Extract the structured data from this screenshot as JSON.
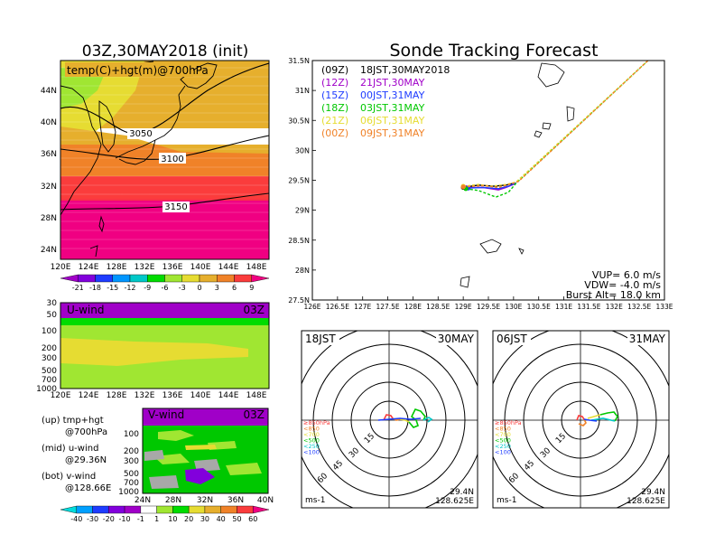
{
  "header": {
    "left_title": "03Z,30MAY2018 (init)",
    "right_title": "Sonde Tracking Forecast"
  },
  "map_panel": {
    "label": "temp(C)+hgt(m)@700hPa",
    "lat_labels": [
      "44N",
      "40N",
      "36N",
      "32N",
      "28N",
      "24N"
    ],
    "lon_labels": [
      "120E",
      "124E",
      "128E",
      "132E",
      "136E",
      "140E",
      "144E",
      "148E"
    ],
    "contours": [
      "3050",
      "3100",
      "3150"
    ],
    "temp_colorbar": [
      "-21",
      "-18",
      "-15",
      "-12",
      "-9",
      "-6",
      "-3",
      "0",
      "3",
      "6",
      "9"
    ],
    "temp_colors": [
      "#a000c8",
      "#8200dc",
      "#1e3cff",
      "#0096ff",
      "#00c8c8",
      "#00dc00",
      "#a0e632",
      "#e6dc32",
      "#e6af2d",
      "#f08228",
      "#fa3c3c",
      "#f00082"
    ]
  },
  "uwind_panel": {
    "label": "U-wind",
    "time": "03Z",
    "p_labels": [
      "30",
      "50",
      "100",
      "200",
      "300",
      "500",
      "700",
      "1000"
    ],
    "lon_labels": [
      "120E",
      "124E",
      "128E",
      "132E",
      "136E",
      "140E",
      "144E",
      "148E"
    ]
  },
  "vwind_panel": {
    "label": "V-wind",
    "time": "03Z",
    "p_labels": [
      "100",
      "200",
      "300",
      "500",
      "700",
      "1000"
    ],
    "lat_labels": [
      "24N",
      "28N",
      "32N",
      "36N",
      "40N"
    ]
  },
  "side_legend": {
    "line1": "(up) tmp+hgt",
    "line2": "@700hPa",
    "line3": "(mid) u-wind",
    "line4": "@29.36N",
    "line5": "(bot) v-wind",
    "line6": "@128.66E"
  },
  "wind_colorbar": {
    "labels": [
      "-40",
      "-30",
      "-20",
      "-10",
      "-1",
      "1",
      "10",
      "20",
      "30",
      "40",
      "50",
      "60"
    ],
    "colors": [
      "#00dcdc",
      "#00a0ff",
      "#1e3cff",
      "#8200dc",
      "#a000c8",
      "#ffffff",
      "#a0e632",
      "#00dc00",
      "#e6dc32",
      "#e6af2d",
      "#f08228",
      "#fa3c3c",
      "#f00082"
    ]
  },
  "track_panel": {
    "legend": [
      {
        "time": "(09Z)",
        "label": "18JST,30MAY2018",
        "color": "#000000"
      },
      {
        "time": "(12Z)",
        "label": "21JST,30MAY",
        "color": "#a000c8"
      },
      {
        "time": "(15Z)",
        "label": "00JST,31MAY",
        "color": "#1e3cff"
      },
      {
        "time": "(18Z)",
        "label": "03JST,31MAY",
        "color": "#00c800"
      },
      {
        "time": "(21Z)",
        "label": "06JST,31MAY",
        "color": "#e6dc32"
      },
      {
        "time": "(00Z)",
        "label": "09JST,31MAY",
        "color": "#f08228"
      }
    ],
    "info": {
      "vup": "VUP=  6.0  m/s",
      "vdw": "VDW= -4.0  m/s",
      "burst": "Burst Alt= 18.0  km"
    },
    "lat_labels": [
      "31.5N",
      "31N",
      "30.5N",
      "30N",
      "29.5N",
      "29N",
      "28.5N",
      "28N",
      "27.5N"
    ],
    "lon_labels": [
      "126E",
      "126.5E",
      "127E",
      "127.5E",
      "128E",
      "128.5E",
      "129E",
      "129.5E",
      "130E",
      "130.5E",
      "131E",
      "131.5E",
      "132E",
      "132.5E",
      "133E"
    ]
  },
  "hodo_left": {
    "left_label": "18JST",
    "right_label": "30MAY",
    "ring_labels": [
      "15",
      "30",
      "45",
      "60"
    ],
    "levels": [
      "≥850hPa",
      "<850",
      "<700",
      "<500",
      "<250",
      "<100"
    ],
    "level_colors": [
      "#fa3c3c",
      "#f08228",
      "#e6dc32",
      "#00c800",
      "#00c8c8",
      "#1e3cff"
    ],
    "unit": "ms-1",
    "lat": "29.4N",
    "lon": "128.625E"
  },
  "hodo_right": {
    "left_label": "06JST",
    "right_label": "31MAY",
    "ring_labels": [
      "15",
      "30",
      "45",
      "60"
    ],
    "levels": [
      "≥850hPa",
      "<850",
      "<700",
      "<500",
      "<250",
      "<100"
    ],
    "level_colors": [
      "#fa3c3c",
      "#f08228",
      "#e6dc32",
      "#00c800",
      "#00c8c8",
      "#1e3cff"
    ],
    "unit": "ms-1",
    "lat": "29.4N",
    "lon": "128.625E"
  },
  "chart_data": [
    {
      "type": "line",
      "title": "Sonde Tracking Forecast",
      "xlabel": "",
      "ylabel": "",
      "xlim": [
        126,
        133
      ],
      "ylim": [
        27.5,
        31.5
      ],
      "series": [
        {
          "name": "18JST,30MAY2018",
          "color": "#000000",
          "x": [
            129.0,
            129.3,
            129.6,
            129.85,
            130.0
          ],
          "y": [
            29.38,
            29.42,
            29.4,
            29.42,
            29.45
          ]
        },
        {
          "name": "21JST,30MAY",
          "color": "#a000c8",
          "x": [
            129.05,
            129.4,
            129.7,
            129.85,
            130.05
          ],
          "y": [
            29.38,
            29.38,
            29.34,
            29.38,
            29.45
          ]
        },
        {
          "name": "00JST,31MAY",
          "color": "#1e3cff",
          "x": [
            129.1,
            129.4,
            129.7,
            129.9,
            130.05
          ],
          "y": [
            29.37,
            29.38,
            29.36,
            29.4,
            29.46
          ]
        },
        {
          "name": "03JST,31MAY",
          "color": "#00c800",
          "x": [
            129.05,
            129.3,
            129.65,
            129.9,
            130.05,
            132.8
          ],
          "y": [
            29.36,
            29.33,
            29.22,
            29.3,
            29.45,
            31.6
          ]
        },
        {
          "name": "06JST,31MAY",
          "color": "#e6dc32",
          "x": [
            129.0,
            129.3,
            129.55,
            129.85,
            130.05,
            132.8
          ],
          "y": [
            29.4,
            29.43,
            29.4,
            29.43,
            29.47,
            31.6
          ]
        },
        {
          "name": "09JST,31MAY",
          "color": "#f08228",
          "x": [
            129.0,
            129.4,
            129.7,
            129.95,
            130.1,
            132.8
          ],
          "y": [
            29.39,
            29.41,
            29.38,
            29.44,
            29.48,
            31.6
          ]
        }
      ]
    }
  ]
}
